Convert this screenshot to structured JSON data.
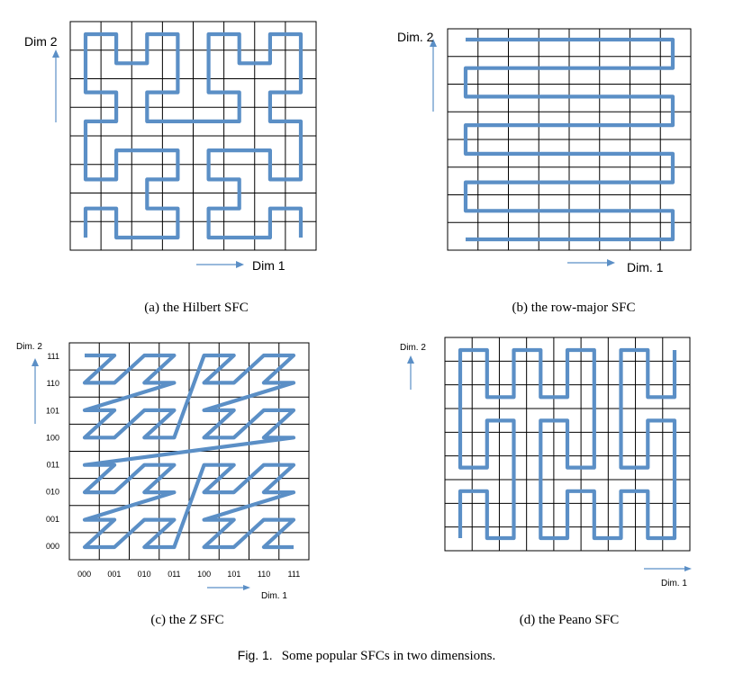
{
  "colors": {
    "curve": "#5b8fc6",
    "grid": "#000000",
    "arrow": "#5b8fc6"
  },
  "panels": [
    {
      "id": "hilbert",
      "caption": "(a) the Hilbert SFC",
      "x_axis_label": "Dim 1",
      "y_axis_label": "Dim 2",
      "grid_size": 8,
      "curve": "hilbert"
    },
    {
      "id": "row-major",
      "caption": "(b) the row-major SFC",
      "x_axis_label": "Dim. 1",
      "y_axis_label": "Dim. 2",
      "grid_size": 8,
      "curve": "row-major"
    },
    {
      "id": "z-order",
      "caption_prefix": "(c) the ",
      "caption_italic": "Z",
      "caption_suffix": " SFC",
      "x_axis_label": "Dim. 1",
      "y_axis_label": "Dim. 2",
      "grid_size": 8,
      "curve": "z-order",
      "x_ticks": [
        "000",
        "001",
        "010",
        "011",
        "100",
        "101",
        "110",
        "111"
      ],
      "y_ticks": [
        "000",
        "001",
        "010",
        "011",
        "100",
        "101",
        "110",
        "111"
      ]
    },
    {
      "id": "peano",
      "caption": "(d) the Peano SFC",
      "x_axis_label": "Dim. 1",
      "y_axis_label": "Dim. 2",
      "grid_size": 9,
      "curve": "peano"
    }
  ],
  "figure_caption": {
    "label": "Fig. 1.",
    "text": "Some popular SFCs in two dimensions."
  }
}
